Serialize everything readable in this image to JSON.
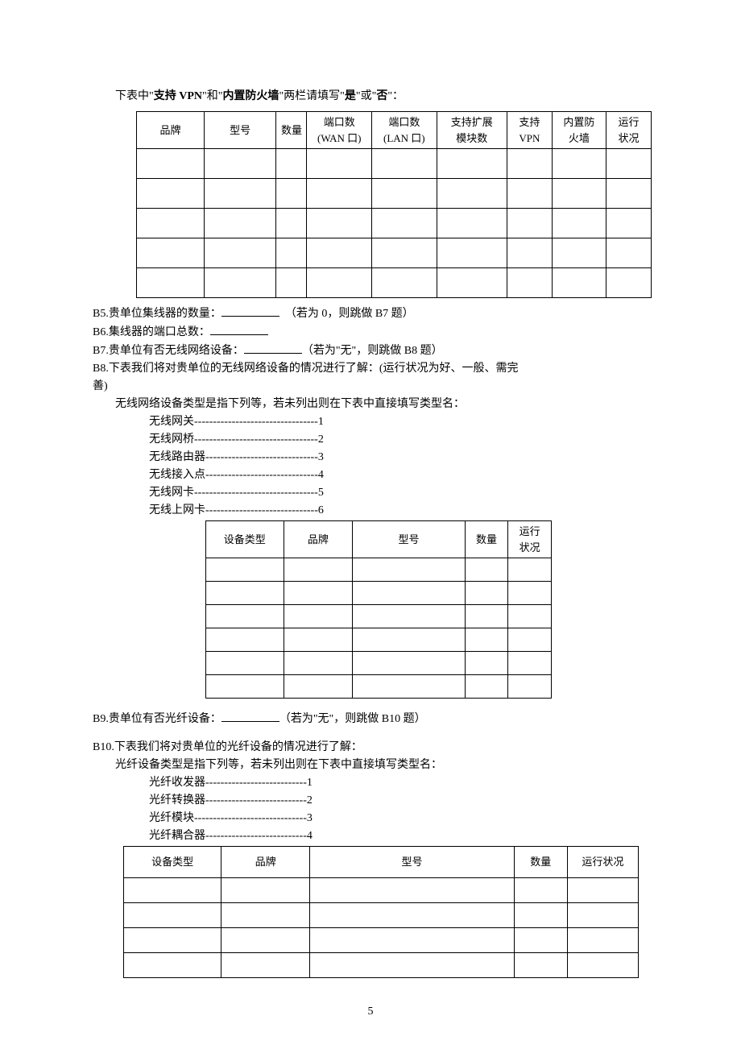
{
  "intro": {
    "pre": "下表中\"",
    "b1": "支持 VPN",
    "mid1": "\"和\"",
    "b2": "内置防火墙",
    "mid2": "\"两栏请填写\"",
    "b3": "是",
    "mid3": "\"或\"",
    "b4": "否",
    "post": "\"："
  },
  "table1": {
    "headers": [
      "品牌",
      "型号",
      "数量",
      "端口数\n(WAN 口)",
      "端口数\n(LAN 口)",
      "支持扩展\n模块数",
      "支持\nVPN",
      "内置防\n火墙",
      "运行\n状况"
    ]
  },
  "lines": {
    "b5a": "B5.贵单位集线器的数量：",
    "b5b": "（若为 0，则跳做 B7 题）",
    "b6": "B6.集线器的端口总数：",
    "b7a": "B7.贵单位有否无线网络设备：",
    "b7b": "（若为\"无\"，则跳做 B8 题）",
    "b8a": "B8.下表我们将对贵单位的无线网络设备的情况进行了解：(运行状况为好、一般、需完",
    "b8a2": "善)",
    "b8list_intro": "无线网络设备类型是指下列等，若未列出则在下表中直接填写类型名：",
    "b8_items": [
      "无线网关---------------------------------1",
      "无线网桥---------------------------------2",
      "无线路由器------------------------------3",
      "无线接入点------------------------------4",
      "无线网卡---------------------------------5",
      "无线上网卡------------------------------6"
    ],
    "b9a": "B9.贵单位有否光纤设备：",
    "b9b": "（若为\"无\"，则跳做 B10 题）",
    "b10a": "B10.下表我们将对贵单位的光纤设备的情况进行了解：",
    "b10list_intro": "光纤设备类型是指下列等，若未列出则在下表中直接填写类型名：",
    "b10_items": [
      "光纤收发器---------------------------1",
      "光纤转换器---------------------------2",
      "光纤模块------------------------------3",
      "光纤耦合器---------------------------4"
    ]
  },
  "table2": {
    "headers": [
      "设备类型",
      "品牌",
      "型号",
      "数量",
      "运行\n状况"
    ]
  },
  "table3": {
    "headers": [
      "设备类型",
      "品牌",
      "型号",
      "数量",
      "运行状况"
    ]
  },
  "pagenum": "5"
}
